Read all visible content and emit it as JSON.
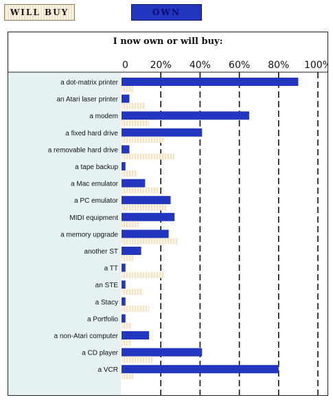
{
  "legend": {
    "will_buy_label": "WILL BUY",
    "own_label": "OWN"
  },
  "chart_data": {
    "type": "bar",
    "orientation": "horizontal",
    "title": "I now own or will buy:",
    "xlim": [
      0,
      100
    ],
    "xticks": [
      "0",
      "20%",
      "40%",
      "60%",
      "80%",
      "100%"
    ],
    "grid": true,
    "categories": [
      "a dot-matrix printer",
      "an Atari laser printer",
      "a modem",
      "a fixed hard drive",
      "a removable hard drive",
      "a tape backup",
      "a Mac emulator",
      "a PC emulator",
      "MIDI equipment",
      "a memory upgrade",
      "another ST",
      "a TT",
      "an STE",
      "a Stacy",
      "a Portfolio",
      "a non-Atari computer",
      "a CD player",
      "a VCR"
    ],
    "series": [
      {
        "name": "OWN",
        "color": "#2236c0",
        "values": [
          90,
          4,
          65,
          41,
          4,
          2,
          12,
          25,
          27,
          24,
          10,
          2,
          2,
          2,
          2,
          14,
          41,
          80
        ]
      },
      {
        "name": "WILL BUY",
        "color": "#efe3c9",
        "values": [
          6,
          12,
          14,
          22,
          27,
          8,
          19,
          23,
          9,
          29,
          6,
          22,
          11,
          14,
          5,
          5,
          16,
          6
        ]
      }
    ]
  }
}
